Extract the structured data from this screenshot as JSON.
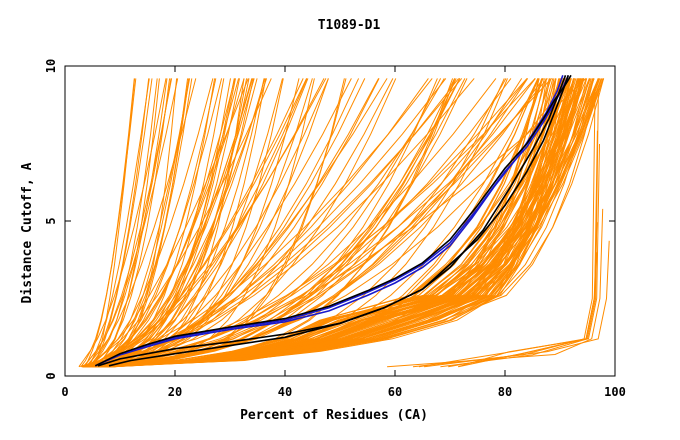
{
  "chart_data": {
    "type": "line",
    "title": "T1089-D1",
    "xlabel": "Percent of Residues (CA)",
    "ylabel": "Distance Cutoff, A",
    "xlim": [
      0,
      100
    ],
    "ylim": [
      0,
      10
    ],
    "x_ticks": [
      0,
      20,
      40,
      60,
      80,
      100
    ],
    "y_ticks": [
      0,
      5,
      10
    ],
    "grid": false,
    "legend": "none",
    "colors": {
      "models": "#ff8c00",
      "highlight_blue": "#1a1acc",
      "highlight_black": "#000000"
    },
    "series": [
      {
        "color": "#1a1acc",
        "x": [
          5.5,
          10,
          15,
          20,
          30,
          40,
          48,
          55,
          60,
          65,
          70,
          75,
          80,
          84,
          87,
          89,
          90.5,
          91.5
        ],
        "y": [
          0.33,
          0.7,
          1.0,
          1.25,
          1.55,
          1.8,
          2.2,
          2.7,
          3.1,
          3.6,
          4.3,
          5.4,
          6.6,
          7.4,
          8.2,
          8.8,
          9.3,
          9.7
        ]
      },
      {
        "color": "#1a1acc",
        "x": [
          5.5,
          10,
          15,
          20,
          30,
          40,
          48,
          55,
          60,
          65,
          70,
          74,
          78,
          82,
          85,
          87.5,
          89.5,
          90.5
        ],
        "y": [
          0.33,
          0.68,
          0.95,
          1.2,
          1.5,
          1.75,
          2.1,
          2.6,
          3.0,
          3.5,
          4.2,
          5.1,
          6.1,
          7.0,
          7.8,
          8.5,
          9.2,
          9.7
        ]
      },
      {
        "color": "#000000",
        "x": [
          5.5,
          10,
          15,
          20,
          30,
          40,
          48,
          55,
          60,
          65,
          70,
          75,
          80,
          84,
          87,
          89,
          91,
          92
        ],
        "y": [
          0.33,
          0.72,
          1.02,
          1.28,
          1.58,
          1.85,
          2.25,
          2.75,
          3.15,
          3.65,
          4.4,
          5.5,
          6.7,
          7.5,
          8.3,
          8.9,
          9.4,
          9.7
        ]
      },
      {
        "color": "#000000",
        "x": [
          6,
          10,
          15,
          20,
          30,
          40,
          50,
          58,
          65,
          70,
          75,
          80,
          84,
          87,
          89,
          90.5,
          91.5
        ],
        "y": [
          0.33,
          0.55,
          0.72,
          0.88,
          1.1,
          1.35,
          1.7,
          2.2,
          2.8,
          3.6,
          4.4,
          5.5,
          6.6,
          7.6,
          8.5,
          9.2,
          9.7
        ]
      },
      {
        "color": "#000000",
        "x": [
          8,
          12,
          20,
          30,
          40,
          50,
          58,
          65,
          70,
          76,
          81,
          85,
          88,
          89.5,
          91
        ],
        "y": [
          0.33,
          0.5,
          0.72,
          0.98,
          1.25,
          1.7,
          2.2,
          2.8,
          3.5,
          4.7,
          6.1,
          7.3,
          8.3,
          9.0,
          9.7
        ]
      }
    ]
  }
}
